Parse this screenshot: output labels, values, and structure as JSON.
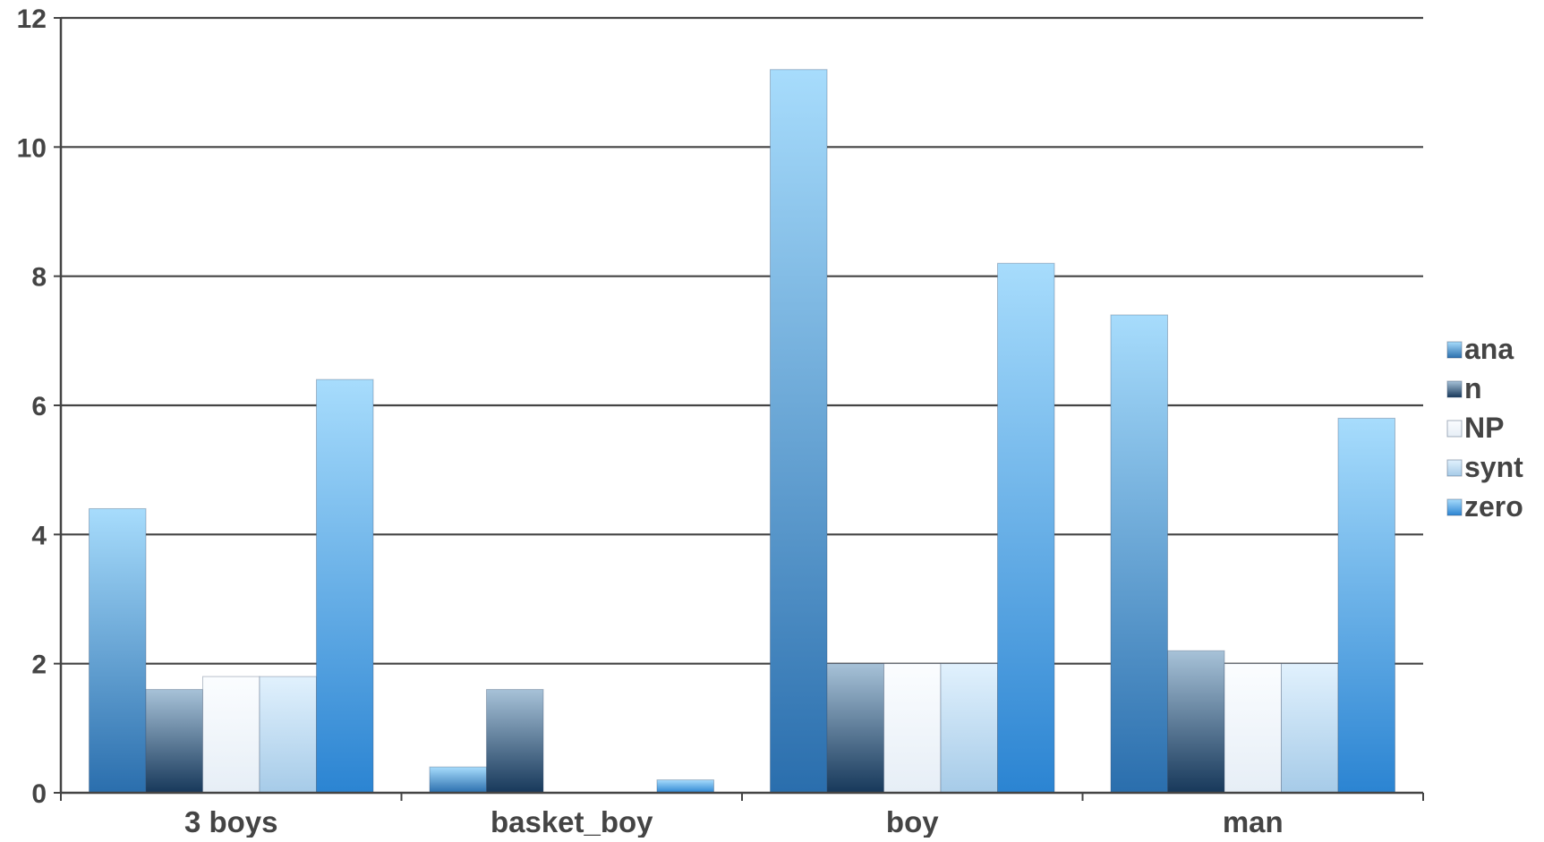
{
  "chart_data": {
    "type": "bar",
    "categories": [
      "3 boys",
      "basket_boy",
      "boy",
      "man"
    ],
    "series": [
      {
        "name": "ana",
        "values": [
          4.4,
          0.4,
          11.2,
          7.4
        ]
      },
      {
        "name": "n",
        "values": [
          1.6,
          1.6,
          2.0,
          2.2
        ]
      },
      {
        "name": "NP",
        "values": [
          1.8,
          0,
          2.0,
          2.0
        ]
      },
      {
        "name": "synt",
        "values": [
          1.8,
          0,
          2.0,
          2.0
        ]
      },
      {
        "name": "zero",
        "values": [
          6.4,
          0.2,
          8.2,
          5.8
        ]
      }
    ],
    "ylim": [
      0,
      12
    ],
    "yticks": [
      0,
      2,
      4,
      6,
      8,
      10,
      12
    ],
    "grid": true,
    "legend_position": "right",
    "title": "",
    "xlabel": "",
    "ylabel": "",
    "colors": {
      "ana": [
        "#a7dcfc",
        "#2a6ead"
      ],
      "n": [
        "#a7c2d8",
        "#17385a"
      ],
      "NP": [
        "#fbfdff",
        "#e6eef6"
      ],
      "synt": [
        "#e1f1fd",
        "#a6cbe8"
      ],
      "zero": [
        "#a7dcfc",
        "#2b84d2"
      ],
      "grid": "#444444",
      "text": "#444444"
    }
  }
}
